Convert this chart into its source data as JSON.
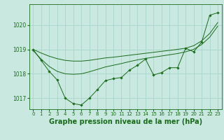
{
  "background_color": "#c8e8e0",
  "grid_color": "#aad4cc",
  "line_color": "#1a6b1a",
  "marker_color": "#1a6b1a",
  "xlabel": "Graphe pression niveau de la mer (hPa)",
  "xlabel_fontsize": 7,
  "tick_fontsize": 5.5,
  "xlim": [
    -0.5,
    23.5
  ],
  "ylim": [
    1016.55,
    1020.85
  ],
  "yticks": [
    1017,
    1018,
    1019,
    1020
  ],
  "xticks": [
    0,
    1,
    2,
    3,
    4,
    5,
    6,
    7,
    8,
    9,
    10,
    11,
    12,
    13,
    14,
    15,
    16,
    17,
    18,
    19,
    20,
    21,
    22,
    23
  ],
  "series_marker": [
    1019.0,
    1018.55,
    1018.1,
    1017.75,
    1017.0,
    1016.78,
    1016.72,
    1017.0,
    1017.35,
    1017.72,
    1017.8,
    1017.85,
    1018.15,
    1018.35,
    1018.6,
    1017.95,
    1018.05,
    1018.25,
    1018.25,
    1019.05,
    1018.9,
    1019.3,
    1020.4,
    1020.5
  ],
  "series_smooth_high": [
    1019.0,
    1018.85,
    1018.72,
    1018.62,
    1018.55,
    1018.52,
    1018.52,
    1018.55,
    1018.6,
    1018.65,
    1018.68,
    1018.72,
    1018.76,
    1018.8,
    1018.84,
    1018.88,
    1018.92,
    1018.96,
    1019.0,
    1019.05,
    1019.15,
    1019.35,
    1019.65,
    1020.1
  ],
  "series_smooth_low": [
    1018.95,
    1018.6,
    1018.3,
    1018.1,
    1018.0,
    1017.98,
    1018.0,
    1018.08,
    1018.18,
    1018.28,
    1018.35,
    1018.42,
    1018.5,
    1018.57,
    1018.63,
    1018.68,
    1018.73,
    1018.78,
    1018.83,
    1018.9,
    1019.0,
    1019.2,
    1019.5,
    1019.95
  ]
}
